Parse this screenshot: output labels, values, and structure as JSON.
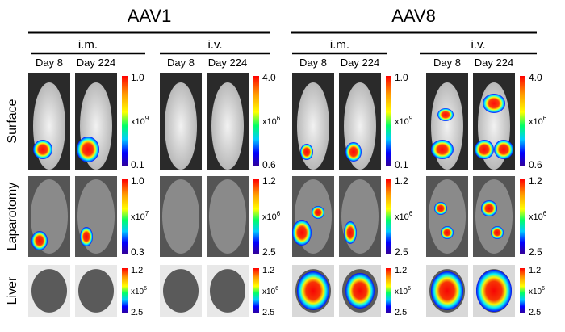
{
  "groups": [
    {
      "title": "AAV1",
      "routes": [
        {
          "label": "i.m.",
          "days": [
            "Day 8",
            "Day 224"
          ]
        },
        {
          "label": "i.v.",
          "days": [
            "Day 8",
            "Day 224"
          ]
        }
      ]
    },
    {
      "title": "AAV8",
      "routes": [
        {
          "label": "i.m.",
          "days": [
            "Day 8",
            "Day 224"
          ]
        },
        {
          "label": "i.v.",
          "days": [
            "Day 8",
            "Day 224"
          ]
        }
      ]
    }
  ],
  "rows": [
    {
      "label": "Surface",
      "scales": [
        {
          "max": "1.0",
          "unit": "x10",
          "exp": "9",
          "min": "0.1"
        },
        {
          "max": "4.0",
          "unit": "x10",
          "exp": "6",
          "min": "0.6"
        },
        {
          "max": "1.0",
          "unit": "x10",
          "exp": "9",
          "min": "0.1"
        },
        {
          "max": "4.0",
          "unit": "x10",
          "exp": "6",
          "min": "0.6"
        }
      ]
    },
    {
      "label": "Laparotomy",
      "scales": [
        {
          "max": "1.0",
          "unit": "x10",
          "exp": "7",
          "min": "0.3"
        },
        {
          "max": "1.2",
          "unit": "x10",
          "exp": "6",
          "min": "2.5"
        },
        {
          "max": "1.2",
          "unit": "x10",
          "exp": "6",
          "min": "2.5"
        },
        {
          "max": "1.2",
          "unit": "x10",
          "exp": "6",
          "min": "2.5"
        }
      ]
    },
    {
      "label": "Liver",
      "scales": [
        {
          "max": "1.2",
          "unit": "x10",
          "exp": "6",
          "min": "2.5"
        },
        {
          "max": "1.2",
          "unit": "x10",
          "exp": "6",
          "min": "2.5"
        },
        {
          "max": "1.2",
          "unit": "x10",
          "exp": "6",
          "min": "2.5"
        },
        {
          "max": "1.2",
          "unit": "x10",
          "exp": "6",
          "min": "2.5"
        }
      ]
    }
  ]
}
